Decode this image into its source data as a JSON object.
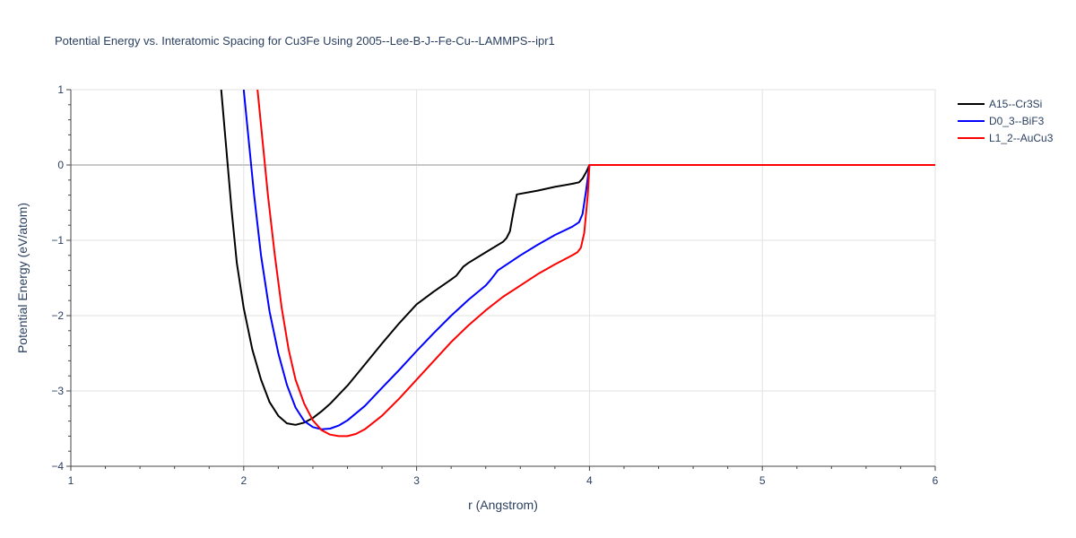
{
  "chart_data": {
    "type": "line",
    "title": "Potential Energy vs. Interatomic Spacing for Cu3Fe Using 2005--Lee-B-J--Fe-Cu--LAMMPS--ipr1",
    "xlabel": "r (Angstrom)",
    "ylabel": "Potential Energy (eV/atom)",
    "xlim": [
      1,
      6
    ],
    "ylim": [
      -4,
      1
    ],
    "xticks": [
      1,
      2,
      3,
      4,
      5,
      6
    ],
    "yticks": [
      1,
      0,
      -1,
      -2,
      -3,
      -4
    ],
    "ytick_labels": [
      "1",
      "0",
      "−1",
      "−2",
      "−3",
      "−4"
    ],
    "grid": true,
    "legend_position": "top-right",
    "series": [
      {
        "name": "A15--Cr3Si",
        "color": "#000000",
        "x": [
          1.87,
          1.9,
          1.93,
          1.96,
          2.0,
          2.05,
          2.1,
          2.15,
          2.2,
          2.25,
          2.3,
          2.35,
          2.4,
          2.45,
          2.5,
          2.55,
          2.6,
          2.7,
          2.8,
          2.9,
          3.0,
          3.1,
          3.2,
          3.23,
          3.27,
          3.3,
          3.4,
          3.5,
          3.52,
          3.54,
          3.56,
          3.58,
          3.7,
          3.8,
          3.9,
          3.94,
          3.96,
          3.98,
          4.0,
          6.0
        ],
        "y": [
          1.0,
          0.2,
          -0.6,
          -1.3,
          -1.9,
          -2.45,
          -2.85,
          -3.15,
          -3.33,
          -3.43,
          -3.45,
          -3.42,
          -3.36,
          -3.27,
          -3.17,
          -3.05,
          -2.93,
          -2.65,
          -2.37,
          -2.1,
          -1.85,
          -1.68,
          -1.52,
          -1.47,
          -1.35,
          -1.3,
          -1.16,
          -1.02,
          -0.97,
          -0.88,
          -0.62,
          -0.39,
          -0.34,
          -0.29,
          -0.25,
          -0.23,
          -0.18,
          -0.1,
          0.0,
          0.0
        ]
      },
      {
        "name": "D0_3--BiF3",
        "color": "#0000ff",
        "x": [
          2.0,
          2.03,
          2.06,
          2.1,
          2.15,
          2.2,
          2.25,
          2.3,
          2.35,
          2.4,
          2.45,
          2.5,
          2.55,
          2.6,
          2.7,
          2.8,
          2.9,
          3.0,
          3.1,
          3.2,
          3.3,
          3.4,
          3.43,
          3.47,
          3.6,
          3.7,
          3.8,
          3.9,
          3.94,
          3.96,
          3.98,
          4.0,
          6.0
        ],
        "y": [
          1.0,
          0.3,
          -0.4,
          -1.2,
          -1.95,
          -2.5,
          -2.92,
          -3.22,
          -3.4,
          -3.48,
          -3.51,
          -3.5,
          -3.46,
          -3.39,
          -3.2,
          -2.96,
          -2.72,
          -2.47,
          -2.23,
          -2.0,
          -1.79,
          -1.6,
          -1.52,
          -1.4,
          -1.2,
          -1.06,
          -0.93,
          -0.82,
          -0.76,
          -0.65,
          -0.35,
          0.0,
          0.0
        ]
      },
      {
        "name": "L1_2--AuCu3",
        "color": "#ff0000",
        "x": [
          2.08,
          2.11,
          2.14,
          2.18,
          2.22,
          2.26,
          2.3,
          2.35,
          2.4,
          2.45,
          2.5,
          2.55,
          2.6,
          2.65,
          2.7,
          2.8,
          2.9,
          3.0,
          3.1,
          3.2,
          3.3,
          3.4,
          3.5,
          3.6,
          3.7,
          3.8,
          3.9,
          3.93,
          3.95,
          3.97,
          3.99,
          4.0,
          6.0
        ],
        "y": [
          1.0,
          0.3,
          -0.4,
          -1.2,
          -1.9,
          -2.45,
          -2.85,
          -3.17,
          -3.39,
          -3.52,
          -3.58,
          -3.6,
          -3.6,
          -3.57,
          -3.51,
          -3.33,
          -3.1,
          -2.85,
          -2.6,
          -2.35,
          -2.13,
          -1.93,
          -1.75,
          -1.6,
          -1.45,
          -1.32,
          -1.2,
          -1.16,
          -1.1,
          -0.9,
          -0.4,
          0.0,
          0.0
        ]
      }
    ]
  }
}
